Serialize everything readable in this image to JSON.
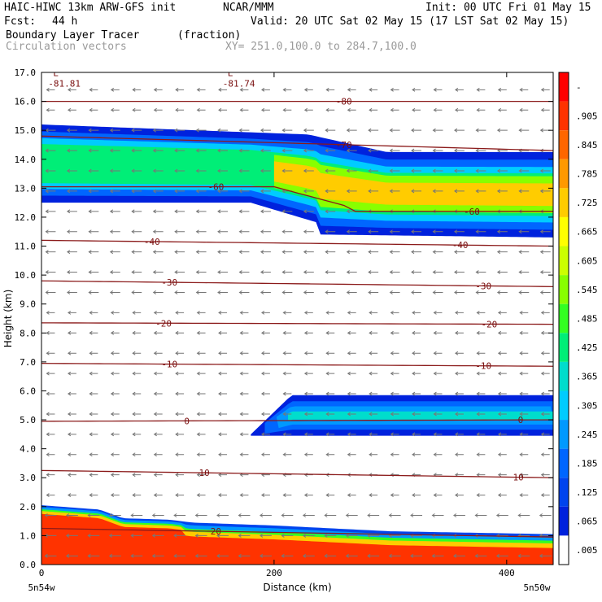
{
  "header": {
    "model": "HAIC-HIWC 13km ARW-GFS init",
    "org": "NCAR/MMM",
    "init": "Init: 00 UTC Fri 01 May 15",
    "fcst_label": "Fcst:",
    "fcst_value": "44 h",
    "valid": "Valid: 20 UTC Sat 02 May 15 (17 LST Sat 02 May 15)",
    "field": "Boundary Layer Tracer",
    "field_unit": "(fraction)",
    "overlay": "Circulation vectors",
    "xy": "XY= 251.0,100.0 to 284.7,100.0"
  },
  "chart_data": {
    "type": "heatmap",
    "xlabel": "Distance (km)",
    "ylabel": "Height (km)",
    "xlim": [
      0,
      440
    ],
    "ylim": [
      0,
      17
    ],
    "x_ticks": [
      0,
      200,
      400
    ],
    "y_ticks": [
      0.0,
      1.0,
      2.0,
      3.0,
      4.0,
      5.0,
      6.0,
      7.0,
      8.0,
      9.0,
      10.0,
      11.0,
      12.0,
      13.0,
      14.0,
      15.0,
      16.0,
      17.0
    ],
    "x_end_labels": {
      "left": "5n54w",
      "right": "5n50w"
    },
    "colorbar": {
      "labels": [
        "-",
        ".905",
        ".845",
        ".785",
        ".725",
        ".665",
        ".605",
        ".545",
        ".485",
        ".425",
        ".365",
        ".305",
        ".245",
        ".185",
        ".125",
        ".065",
        ".005"
      ],
      "colors": [
        "#ff0000",
        "#ff3300",
        "#ff6600",
        "#ff9900",
        "#ffcc00",
        "#ffff00",
        "#ccff00",
        "#88ff00",
        "#33ff22",
        "#00ee77",
        "#00ddcc",
        "#00ccff",
        "#0099ff",
        "#0066ff",
        "#0044ee",
        "#0022dd",
        "#ffffff"
      ]
    },
    "lows": [
      {
        "label": "L",
        "value": "-81.81",
        "x": 10,
        "y": 16.7
      },
      {
        "label": "L",
        "value": "-81.74",
        "x": 160,
        "y": 16.7
      }
    ],
    "isotherms": [
      {
        "label": "20",
        "y0": 1.25,
        "y1": 0.95,
        "label_x": [
          150
        ]
      },
      {
        "label": "10",
        "y0": 3.25,
        "y1": 3.0,
        "label_x": [
          140,
          410
        ]
      },
      {
        "label": "0",
        "y0": 4.95,
        "y1": 5.0,
        "label_x": [
          125,
          412
        ]
      },
      {
        "label": "-10",
        "y0": 6.95,
        "y1": 6.85,
        "label_x": [
          110,
          380
        ]
      },
      {
        "label": "-20",
        "y0": 8.35,
        "y1": 8.3,
        "label_x": [
          105,
          385
        ]
      },
      {
        "label": "-30",
        "y0": 9.8,
        "y1": 9.6,
        "label_x": [
          110,
          380
        ]
      },
      {
        "label": "-40",
        "y0": 11.2,
        "y1": 11.0,
        "label_x": [
          95,
          360
        ]
      },
      {
        "label": "-60",
        "y0": 13.05,
        "y1": 12.2,
        "label_x": [
          150,
          370
        ]
      },
      {
        "label": "-70",
        "y0": 14.8,
        "y1": 14.3,
        "label_x": [
          260
        ]
      },
      {
        "label": "-80",
        "y0": 16.0,
        "y1": 16.0,
        "label_x": [
          260
        ]
      }
    ],
    "tracer_layers": [
      {
        "name": "boundary layer",
        "x_range": [
          0,
          440
        ],
        "top_km_at_x": [
          [
            0,
            2.05
          ],
          [
            50,
            1.9
          ],
          [
            70,
            1.6
          ],
          [
            110,
            1.55
          ],
          [
            130,
            1.45
          ],
          [
            200,
            1.35
          ],
          [
            300,
            1.15
          ],
          [
            440,
            1.05
          ]
        ],
        "max_value": 0.95
      },
      {
        "name": "midlevel plume",
        "x_range": [
          180,
          440
        ],
        "top_km": 5.85,
        "bottom_km": 4.45,
        "max_value": 0.31
      },
      {
        "name": "upper plume",
        "x_range": [
          0,
          440
        ],
        "top_km": 15.2,
        "bottom_km": 11.3,
        "max_value": 0.72
      }
    ],
    "vectors": {
      "direction": "westward (toward left)",
      "grid": "regular"
    }
  }
}
